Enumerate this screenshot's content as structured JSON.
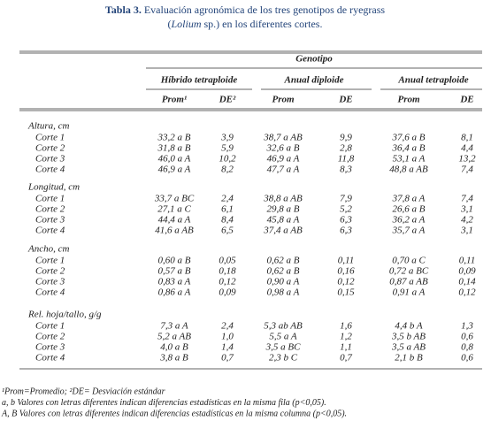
{
  "title": {
    "label": "Tabla 3.",
    "line1": "Evaluación agronómica de los tres genotipos de ryegrass",
    "line2": [
      "(",
      "Lolium",
      " sp.) en los diferentes cortes."
    ]
  },
  "table": {
    "super_header": "Genotipo",
    "groups": [
      "Híbrido tetraploide",
      "Anual diploide",
      "Anual tetraploide"
    ],
    "columns": [
      "Prom¹",
      "DE²",
      "Prom",
      "DE",
      "Prom",
      "DE"
    ],
    "sections": [
      {
        "name": "Altura, cm",
        "rows": [
          {
            "label": "Corte 1",
            "cells": [
              "33,2 a B",
              "3,9",
              "38,7 a AB",
              "9,9",
              "37,6 a B",
              "8,1"
            ]
          },
          {
            "label": "Corte 2",
            "cells": [
              "31,8 a B",
              "5,9",
              "32,6 a B",
              "2,8",
              "36,4 a B",
              "4,4"
            ]
          },
          {
            "label": "Corte 3",
            "cells": [
              "46,0 a A",
              "10,2",
              "46,9 a A",
              "11,8",
              "53,1 a A",
              "13,2"
            ]
          },
          {
            "label": "Corte 4",
            "cells": [
              "46,9 a A",
              "8,2",
              "47,7 a A",
              "8,3",
              "48,8 a AB",
              "7,4"
            ]
          }
        ]
      },
      {
        "name": "Longitud, cm",
        "rows": [
          {
            "label": "Corte 1",
            "cells": [
              "33,7 a BC",
              "2,4",
              "38,8 a AB",
              "7,9",
              "37,8 a A",
              "7,4"
            ]
          },
          {
            "label": "Corte 2",
            "cells": [
              "27,1 a C",
              "6,1",
              "29,8 a B",
              "5,2",
              "26,6 a B",
              "3,1"
            ]
          },
          {
            "label": "Corte 3",
            "cells": [
              "44,4 a A",
              "8,4",
              "45,8 a A",
              "6,3",
              "36,2 a A",
              "4,2"
            ]
          },
          {
            "label": "Corte 4",
            "cells": [
              "41,6 a AB",
              "6,5",
              "37,4 a AB",
              "6,3",
              "35,7 a A",
              "3,1"
            ]
          }
        ]
      },
      {
        "name": "Ancho, cm",
        "rows": [
          {
            "label": "Corte 1",
            "cells": [
              "0,60 a B",
              "0,05",
              "0,62 a B",
              "0,11",
              "0,70 a C",
              "0,11"
            ]
          },
          {
            "label": "Corte 2",
            "cells": [
              "0,57 a B",
              "0,18",
              "0,62 a B",
              "0,16",
              "0,72 a BC",
              "0,09"
            ]
          },
          {
            "label": "Corte 3",
            "cells": [
              "0,83 a A",
              "0,12",
              "0,90 a A",
              "0,12",
              "0,87 a AB",
              "0,14"
            ]
          },
          {
            "label": "Corte 4",
            "cells": [
              "0,86 a A",
              "0,09",
              "0,98 a A",
              "0,15",
              "0,91 a A",
              "0,12"
            ]
          }
        ]
      },
      {
        "name": "Rel. hoja/tallo, g/g",
        "rows": [
          {
            "label": "Corte 1",
            "cells": [
              "7,3 a A",
              "2,4",
              "5,3 ab AB",
              "1,6",
              "4,4 b A",
              "1,3"
            ]
          },
          {
            "label": "Corte 2",
            "cells": [
              "5,2 a AB",
              "1,0",
              "5,5 a A",
              "1,2",
              "3,5 b AB",
              "0,6"
            ]
          },
          {
            "label": "Corte 3",
            "cells": [
              "4,0 a B",
              "1,4",
              "3,5 a BC",
              "1,1",
              "3,5 a AB",
              "0,8"
            ]
          },
          {
            "label": "Corte 4",
            "cells": [
              "3,8 a B",
              "0,7",
              "2,3 b C",
              "0,7",
              "2,1 b B",
              "0,6"
            ]
          }
        ]
      }
    ]
  },
  "footnotes": [
    "¹Prom=Promedio; ²DE= Desviación estándar",
    "a, b Valores con letras diferentes indican diferencias estadísticas en la misma fila (p<0,05).",
    "A, B Valores con letras diferentes indican diferencias estadísticas en la misma columna (p<0,05)."
  ]
}
